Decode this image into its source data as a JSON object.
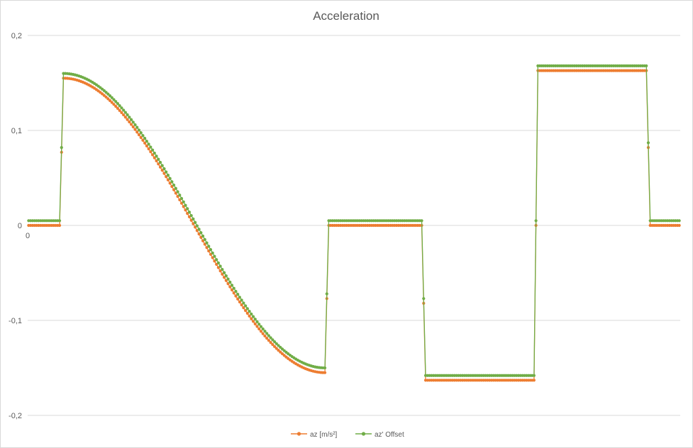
{
  "chart_data": {
    "type": "line",
    "title": "Acceleration",
    "xlabel": "",
    "ylabel": "",
    "ylim": [
      -0.2,
      0.2
    ],
    "yticks": [
      "-0,2",
      "-0,1",
      "0",
      "0,1",
      "0,2"
    ],
    "ytick_values": [
      -0.2,
      -0.1,
      0,
      0.1,
      0.2
    ],
    "xtick_labels": [
      "0"
    ],
    "grid": true,
    "legend_position": "bottom",
    "colors": {
      "az": "#ED7D31",
      "az_offset": "#70AD47",
      "grid": "#D9D9D9",
      "text": "#595959"
    },
    "x_count": 337,
    "series": [
      {
        "name": "az [m/s²]",
        "color": "#ED7D31",
        "segments": [
          {
            "from": 0,
            "to": 16,
            "kind": "const",
            "value": 0
          },
          {
            "from": 17,
            "to": 17,
            "kind": "const",
            "value": 0.077
          },
          {
            "from": 18,
            "to": 153,
            "kind": "cos",
            "start": 0.155,
            "end": -0.155
          },
          {
            "from": 154,
            "to": 154,
            "kind": "const",
            "value": -0.077
          },
          {
            "from": 155,
            "to": 203,
            "kind": "const",
            "value": 0
          },
          {
            "from": 204,
            "to": 204,
            "kind": "const",
            "value": -0.082
          },
          {
            "from": 205,
            "to": 261,
            "kind": "const",
            "value": -0.163
          },
          {
            "from": 262,
            "to": 262,
            "kind": "const",
            "value": 0
          },
          {
            "from": 263,
            "to": 319,
            "kind": "const",
            "value": 0.163
          },
          {
            "from": 320,
            "to": 320,
            "kind": "const",
            "value": 0.082
          },
          {
            "from": 321,
            "to": 336,
            "kind": "const",
            "value": 0
          }
        ]
      },
      {
        "name": "az' Offset",
        "color": "#70AD47",
        "segments": [
          {
            "from": 0,
            "to": 16,
            "kind": "const",
            "value": 0.005
          },
          {
            "from": 17,
            "to": 17,
            "kind": "const",
            "value": 0.082
          },
          {
            "from": 18,
            "to": 153,
            "kind": "cos",
            "start": 0.16,
            "end": -0.15
          },
          {
            "from": 154,
            "to": 154,
            "kind": "const",
            "value": -0.072
          },
          {
            "from": 155,
            "to": 203,
            "kind": "const",
            "value": 0.005
          },
          {
            "from": 204,
            "to": 204,
            "kind": "const",
            "value": -0.077
          },
          {
            "from": 205,
            "to": 261,
            "kind": "const",
            "value": -0.158
          },
          {
            "from": 262,
            "to": 262,
            "kind": "const",
            "value": 0.005
          },
          {
            "from": 263,
            "to": 319,
            "kind": "const",
            "value": 0.168
          },
          {
            "from": 320,
            "to": 320,
            "kind": "const",
            "value": 0.087
          },
          {
            "from": 321,
            "to": 336,
            "kind": "const",
            "value": 0.005
          }
        ]
      }
    ]
  }
}
